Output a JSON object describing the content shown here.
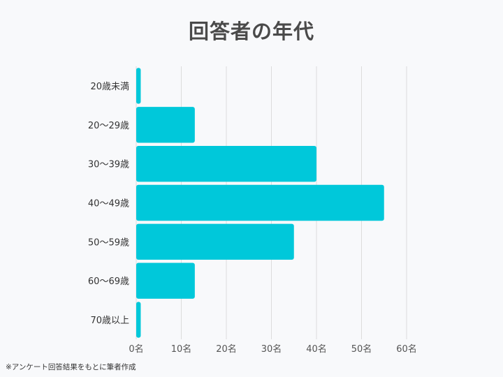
{
  "chart_data": {
    "type": "bar",
    "orientation": "horizontal",
    "title": "回答者の年代",
    "categories": [
      "20歳未満",
      "20～29歳",
      "30～39歳",
      "40～49歳",
      "50～59歳",
      "60～69歳",
      "70歳以上"
    ],
    "values": [
      1,
      13,
      40,
      55,
      35,
      13,
      1
    ],
    "x_ticks": [
      "0名",
      "10名",
      "20名",
      "30名",
      "40名",
      "50名",
      "60名"
    ],
    "xlim": [
      0,
      60
    ],
    "xlabel": "",
    "ylabel": "",
    "grid": true,
    "legend": "none",
    "bar_color": "#00c8da",
    "grid_color": "#dcdcdc"
  },
  "footnote": "※アンケート回答結果をもとに筆者作成"
}
